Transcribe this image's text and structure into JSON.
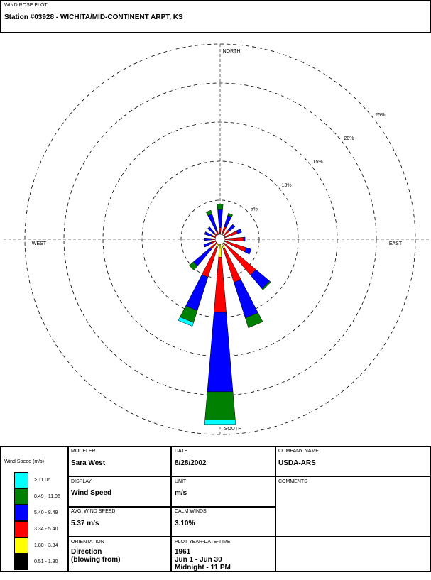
{
  "header": {
    "label": "WIND ROSE PLOT",
    "title": "Station #03928 - WICHITA/MID-CONTINENT ARPT, KS"
  },
  "chart_data": {
    "type": "wind-rose",
    "categories": [
      "NORTH",
      null,
      null,
      null,
      "EAST",
      null,
      null,
      null,
      "SOUTH",
      null,
      null,
      null,
      "WEST",
      null,
      null,
      null
    ],
    "legend_title": "Wind Speed (m/s)",
    "series": [
      {
        "name": "0.51 - 1.80",
        "color": "#000000",
        "values": [
          0.2,
          0.2,
          0.2,
          0.2,
          0.2,
          0.2,
          0.3,
          0.3,
          0.5,
          0.3,
          0.2,
          0.2,
          0.2,
          0.2,
          0.2,
          0.2
        ]
      },
      {
        "name": "1.80 - 3.34",
        "color": "#ffff00",
        "values": [
          0.3,
          0.3,
          0.2,
          0.3,
          0.3,
          0.3,
          0.5,
          1.0,
          1.8,
          0.8,
          0.3,
          0.2,
          0.2,
          0.2,
          0.2,
          0.2
        ]
      },
      {
        "name": "3.34 - 5.40",
        "color": "#ff0000",
        "values": [
          1.0,
          1.2,
          1.2,
          1.8,
          2.5,
          3.0,
          5.2,
          4.5,
          7.1,
          4.0,
          1.2,
          0.8,
          0.7,
          0.8,
          0.7,
          0.8
        ]
      },
      {
        "name": "5.40 - 8.49",
        "color": "#0000ff",
        "values": [
          2.3,
          1.5,
          0.9,
          0.6,
          0.2,
          0.7,
          2.3,
          4.8,
          10.2,
          4.5,
          2.8,
          1.0,
          0.9,
          0.9,
          1.0,
          2.2
        ]
      },
      {
        "name": "8.49 - 11.06",
        "color": "#008000",
        "values": [
          0.7,
          0.3,
          0,
          0,
          0,
          0,
          0.2,
          1.3,
          3.6,
          1.6,
          0.7,
          0,
          0,
          0,
          0,
          0.5
        ]
      },
      {
        "name": "> 11.06",
        "color": "#00ffff",
        "values": [
          0,
          0,
          0,
          0,
          0,
          0,
          0,
          0,
          0.6,
          0.5,
          0,
          0,
          0,
          0,
          0,
          0
        ]
      }
    ],
    "rlim": [
      0,
      25
    ],
    "rticks": [
      {
        "value": 5,
        "label": "5%"
      },
      {
        "value": 10,
        "label": "10%"
      },
      {
        "value": 15,
        "label": "15%"
      },
      {
        "value": 20,
        "label": "20%"
      },
      {
        "value": 25,
        "label": "25%"
      }
    ]
  },
  "info": {
    "modeler": {
      "label": "MODELER",
      "value": "Sara West"
    },
    "date": {
      "label": "DATE",
      "value": "8/28/2002"
    },
    "company": {
      "label": "COMPANY NAME",
      "value": "USDA-ARS"
    },
    "display": {
      "label": "DISPLAY",
      "value": "Wind Speed"
    },
    "unit": {
      "label": "UNIT",
      "value": "m/s"
    },
    "comments": {
      "label": "COMMENTS"
    },
    "avg_wind_speed": {
      "label": "AVG. WIND SPEED",
      "value": "5.37 m/s"
    },
    "calm_winds": {
      "label": "CALM WINDS",
      "value": "3.10%"
    },
    "orientation": {
      "label": "ORIENTATION",
      "lines": [
        "Direction",
        "(blowing from)"
      ]
    },
    "plot_time": {
      "label": "PLOT YEAR-DATE-TIME",
      "lines": [
        "1961",
        "Jun 1 - Jun 30",
        "Midnight - 11 PM"
      ]
    }
  }
}
